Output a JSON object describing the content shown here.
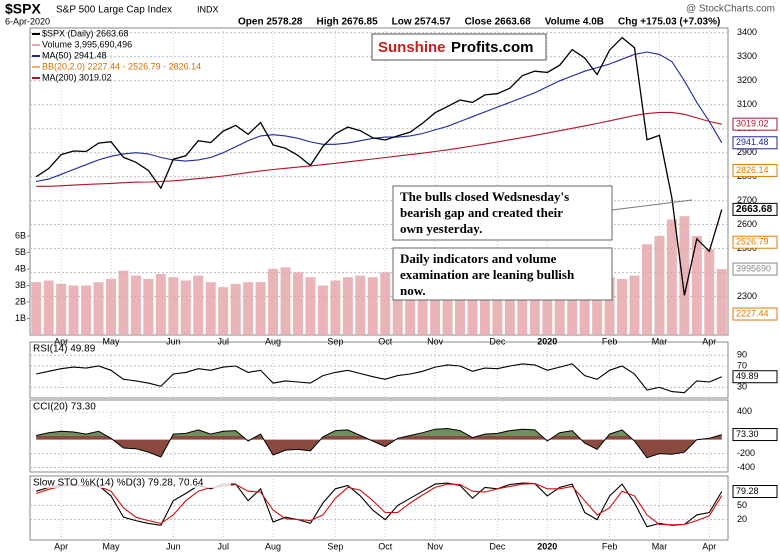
{
  "header": {
    "symbol": "$SPX",
    "name": "S&P 500 Large Cap Index",
    "exchange": "INDX",
    "date": "6-Apr-2020",
    "quote": [
      "Open 2578.28",
      "High 2676.85",
      "Low 2574.57",
      "Close 2663.68",
      "Volume 4.0B",
      "Chg +175.03 (+7.03%)"
    ],
    "source": "@ StockCharts.com"
  },
  "annotations": {
    "logo": [
      "Sunshine",
      "Profits.com"
    ],
    "callouts": [
      [
        "The bulls closed Wedsnesday's",
        "bearish gap and created their",
        "own yesterday."
      ],
      [
        "Daily indicators and volume",
        "examination are leaning bullish",
        "now."
      ]
    ]
  },
  "chart_data": [
    {
      "type": "line",
      "title": "$SPX (Daily) 2663.68",
      "bb_label": "BB(20,2.0) 2227.44 - 2526.79 - 2826.14",
      "categories": [
        null,
        null,
        "Apr",
        null,
        null,
        null,
        "May",
        null,
        null,
        null,
        null,
        "Jun",
        null,
        null,
        null,
        "Jul",
        null,
        null,
        null,
        "Aug",
        null,
        null,
        null,
        null,
        "Sep",
        null,
        null,
        null,
        "Oct",
        null,
        null,
        null,
        "Nov",
        null,
        null,
        null,
        null,
        "Dec",
        null,
        null,
        null,
        "2020",
        null,
        null,
        null,
        null,
        "Feb",
        null,
        null,
        null,
        "Mar",
        null,
        null,
        null,
        "Apr",
        null
      ],
      "series": [
        {
          "name": "MA(200) 3019.02",
          "color": "#b0162a",
          "values": [
            2760,
            2760,
            2762,
            2765,
            2768,
            2770,
            2772,
            2775,
            2777,
            2778,
            2780,
            2783,
            2787,
            2792,
            2797,
            2803,
            2810,
            2817,
            2824,
            2830,
            2835,
            2840,
            2845,
            2850,
            2856,
            2862,
            2868,
            2874,
            2880,
            2886,
            2892,
            2898,
            2905,
            2912,
            2920,
            2928,
            2936,
            2945,
            2954,
            2963,
            2972,
            2982,
            2992,
            3002,
            3012,
            3022,
            3033,
            3044,
            3055,
            3063,
            3068,
            3068,
            3060,
            3045,
            3030,
            3019.02
          ]
        },
        {
          "name": "MA(50) 2941.48",
          "color": "#1f2a9c",
          "values": [
            2780,
            2790,
            2810,
            2830,
            2850,
            2870,
            2885,
            2895,
            2900,
            2895,
            2880,
            2870,
            2865,
            2870,
            2880,
            2900,
            2925,
            2950,
            2970,
            2975,
            2970,
            2960,
            2945,
            2935,
            2935,
            2940,
            2950,
            2960,
            2965,
            2965,
            2970,
            2980,
            2995,
            3010,
            3030,
            3050,
            3070,
            3090,
            3110,
            3130,
            3150,
            3175,
            3200,
            3220,
            3240,
            3255,
            3270,
            3290,
            3310,
            3320,
            3310,
            3280,
            3200,
            3110,
            3030,
            2941.48
          ]
        },
        {
          "name": "Volume 3,995,690,496",
          "color": "#e5a8ab",
          "axis": "y2",
          "values": [
            3200000000,
            3300000000,
            3100000000,
            3000000000,
            3000000000,
            3200000000,
            3400000000,
            3900000000,
            3600000000,
            3400000000,
            3700000000,
            3500000000,
            3300000000,
            3600000000,
            3200000000,
            2900000000,
            3100000000,
            3200000000,
            3200000000,
            4000000000,
            4100000000,
            3800000000,
            3500000000,
            3000000000,
            3300000000,
            3500000000,
            3600000000,
            3500000000,
            3800000000,
            3300000000,
            3400000000,
            3500000000,
            3400000000,
            3500000000,
            3400000000,
            3300000000,
            3100000000,
            3200000000,
            3600000000,
            4500000000,
            2500000000,
            3100000000,
            3300000000,
            3400000000,
            3400000000,
            3700000000,
            3500000000,
            3400000000,
            3600000000,
            5500000000,
            6000000000,
            7000000000,
            7200000000,
            6000000000,
            5200000000,
            3995690496
          ]
        },
        {
          "name": "$SPX (Daily) 2663.68",
          "color": "#000000",
          "values": [
            2800,
            2834,
            2892,
            2907,
            2905,
            2940,
            2946,
            2881,
            2860,
            2826,
            2752,
            2873,
            2887,
            2950,
            2942,
            2990,
            3014,
            2977,
            3026,
            2932,
            2919,
            2889,
            2847,
            2926,
            2979,
            3007,
            2992,
            2962,
            2953,
            2970,
            2986,
            3023,
            3067,
            3093,
            3120,
            3110,
            3141,
            3146,
            3169,
            3221,
            3240,
            3235,
            3265,
            3330,
            3295,
            3226,
            3328,
            3380,
            3338,
            2954,
            2972,
            2711,
            2305,
            2541,
            2489,
            2663.68
          ]
        }
      ],
      "ylim": [
        2140,
        3420
      ],
      "yticks": [
        2300,
        2400,
        2500,
        2600,
        2700,
        2800,
        2900,
        3000,
        3100,
        3200,
        3300,
        3400
      ],
      "y2lim": [
        0,
        18600000000
      ],
      "y2ticks": [
        {
          "value": 1000000000,
          "label": "1B"
        },
        {
          "value": 2000000000,
          "label": "2B"
        },
        {
          "value": 3000000000,
          "label": "3B"
        },
        {
          "value": 4000000000,
          "label": "4B"
        },
        {
          "value": 5000000000,
          "label": "5B"
        },
        {
          "value": 6000000000,
          "label": "6B"
        }
      ],
      "tags": [
        {
          "value": 3019.02,
          "label": "3019.02",
          "color": "#b0162a"
        },
        {
          "value": 2941.48,
          "label": "2941.48",
          "color": "#1f2a9c"
        },
        {
          "value": 2826.14,
          "label": "2826.14",
          "color": "#e07b00"
        },
        {
          "value": 2663.68,
          "label": "2663.68",
          "color": "#000000"
        },
        {
          "value": 2526.79,
          "label": "2526.79",
          "color": "#e07b00"
        },
        {
          "value": 3995690496,
          "label": "3995690",
          "color": "#888888",
          "axis": "y2"
        },
        {
          "value": 2227.44,
          "label": "2227.44",
          "color": "#e07b00"
        }
      ],
      "grid": true
    },
    {
      "type": "line",
      "title": "RSI(14) 49.89",
      "series": [
        {
          "color": "#000000",
          "values": [
            55,
            60,
            65,
            68,
            66,
            70,
            62,
            45,
            42,
            38,
            32,
            55,
            58,
            65,
            62,
            68,
            70,
            58,
            62,
            38,
            42,
            40,
            38,
            52,
            58,
            62,
            56,
            50,
            45,
            52,
            55,
            60,
            68,
            72,
            70,
            60,
            66,
            65,
            70,
            74,
            72,
            62,
            68,
            74,
            52,
            45,
            62,
            70,
            55,
            25,
            30,
            22,
            20,
            42,
            40,
            49.89
          ]
        }
      ],
      "ylim": [
        10,
        115
      ],
      "yticks": [
        30,
        70,
        90
      ],
      "tags": [
        {
          "value": 49.89,
          "label": "49.89",
          "color": "#000000"
        }
      ],
      "grid": true
    },
    {
      "type": "area",
      "title": "CCI(20) 73.30",
      "series": [
        {
          "color": "#000000",
          "values": [
            60,
            100,
            120,
            110,
            80,
            120,
            20,
            -120,
            -130,
            -180,
            -250,
            80,
            90,
            140,
            80,
            120,
            130,
            -20,
            80,
            -220,
            -150,
            -140,
            -160,
            40,
            130,
            140,
            60,
            -20,
            -100,
            20,
            60,
            100,
            150,
            160,
            130,
            30,
            80,
            90,
            130,
            150,
            140,
            -20,
            100,
            130,
            -50,
            -140,
            80,
            140,
            -20,
            -260,
            -200,
            -210,
            -180,
            0,
            20,
            73.3
          ]
        }
      ],
      "ylim": [
        -465,
        570
      ],
      "yticks": [
        -400,
        -200,
        400
      ],
      "tags": [
        {
          "value": 73.3,
          "label": "73.30",
          "color": "#000000"
        }
      ],
      "grid": true
    },
    {
      "type": "line",
      "title": "Slow STO %K(14) %D(3) 79.28, 70.64",
      "series": [
        {
          "color": "#000000",
          "values": [
            80,
            88,
            92,
            94,
            90,
            92,
            70,
            25,
            18,
            12,
            8,
            60,
            75,
            92,
            85,
            95,
            95,
            60,
            85,
            15,
            25,
            20,
            12,
            55,
            85,
            92,
            70,
            40,
            20,
            50,
            65,
            80,
            95,
            97,
            92,
            65,
            88,
            85,
            94,
            97,
            96,
            70,
            88,
            95,
            35,
            20,
            70,
            95,
            55,
            5,
            12,
            8,
            10,
            30,
            35,
            79.28
          ]
        },
        {
          "color": "#d01010",
          "values": [
            75,
            84,
            90,
            93,
            92,
            91,
            80,
            45,
            25,
            18,
            12,
            30,
            60,
            80,
            88,
            90,
            94,
            80,
            78,
            40,
            22,
            20,
            18,
            30,
            65,
            88,
            82,
            60,
            35,
            35,
            55,
            72,
            88,
            95,
            94,
            80,
            78,
            85,
            90,
            95,
            96,
            85,
            85,
            90,
            60,
            30,
            45,
            80,
            70,
            30,
            10,
            9,
            10,
            18,
            28,
            70.64
          ]
        }
      ],
      "ylim": [
        -23,
        112
      ],
      "yticks": [
        20,
        50
      ],
      "tags": [
        {
          "value": 79.28,
          "label": "79.28",
          "color": "#000000"
        }
      ],
      "grid": true
    }
  ]
}
